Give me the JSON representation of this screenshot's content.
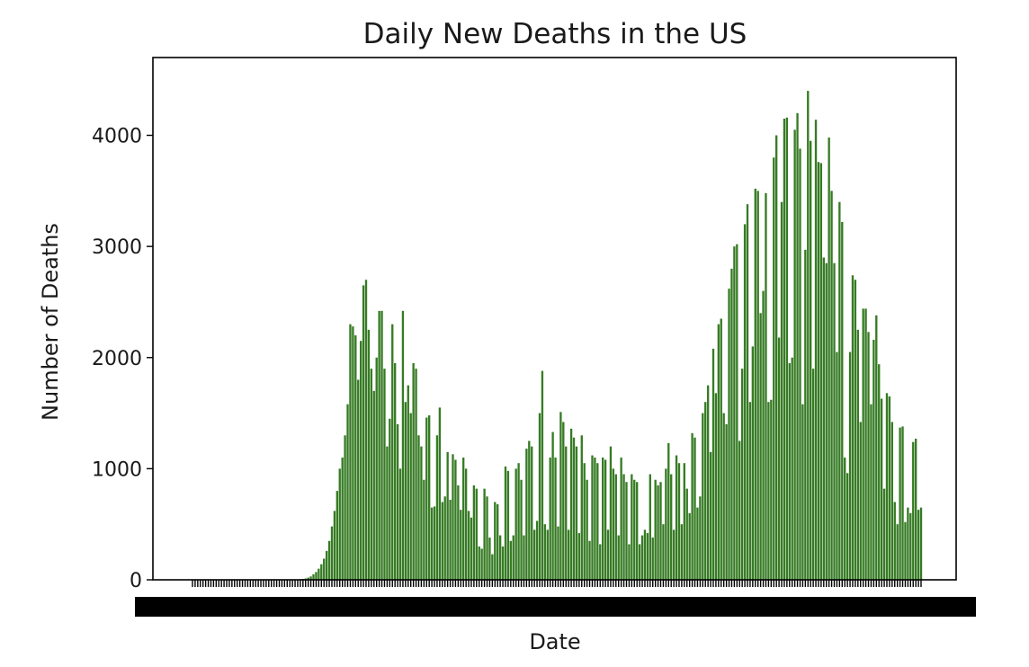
{
  "chart_data": {
    "type": "bar",
    "title": "Daily New Deaths in the US",
    "xlabel": "Date",
    "ylabel": "Number of Deaths",
    "ylim": [
      0,
      4700
    ],
    "yticks": [
      0,
      1000,
      2000,
      3000,
      4000
    ],
    "grid": false,
    "legend": "none",
    "bar_color": "#367b24",
    "x_ticks_note": "Date tick labels are overlapped and illegible in the original",
    "series": [
      {
        "values": [
          0,
          0,
          0,
          0,
          0,
          0,
          0,
          0,
          0,
          0,
          0,
          0,
          0,
          0,
          0,
          0,
          0,
          0,
          0,
          0,
          0,
          0,
          0,
          0,
          0,
          0,
          0,
          0,
          0,
          0,
          0,
          0,
          0,
          0,
          0,
          0,
          0,
          0,
          0,
          0,
          3,
          5,
          8,
          12,
          20,
          30,
          50,
          70,
          100,
          140,
          190,
          260,
          350,
          480,
          620,
          800,
          1000,
          1100,
          1300,
          1580,
          2300,
          2280,
          2200,
          1800,
          2150,
          2650,
          2700,
          2250,
          1900,
          1700,
          2000,
          2420,
          2420,
          1900,
          1200,
          1450,
          2300,
          1950,
          1400,
          1000,
          2420,
          1600,
          1750,
          1500,
          1950,
          1900,
          1300,
          1200,
          900,
          1460,
          1480,
          650,
          660,
          1300,
          1550,
          700,
          750,
          1150,
          720,
          1130,
          1080,
          850,
          630,
          1100,
          1000,
          620,
          560,
          850,
          820,
          300,
          280,
          820,
          750,
          380,
          230,
          700,
          680,
          400,
          300,
          1020,
          980,
          350,
          400,
          1000,
          1050,
          900,
          400,
          1180,
          1250,
          1200,
          450,
          530,
          1500,
          1880,
          500,
          450,
          1100,
          1330,
          1100,
          480,
          1510,
          1420,
          1200,
          450,
          1360,
          1280,
          1200,
          420,
          1300,
          1050,
          900,
          350,
          1120,
          1100,
          1050,
          320,
          1100,
          1080,
          450,
          1200,
          1000,
          950,
          400,
          1100,
          950,
          880,
          320,
          950,
          900,
          880,
          320,
          400,
          450,
          420,
          950,
          380,
          900,
          850,
          880,
          500,
          1000,
          1230,
          950,
          450,
          1120,
          1050,
          500,
          1050,
          820,
          600,
          1320,
          1280,
          650,
          750,
          1500,
          1600,
          1750,
          1150,
          2080,
          1680,
          2300,
          2350,
          1500,
          1400,
          2620,
          2800,
          3000,
          3020,
          1250,
          1900,
          3200,
          3380,
          1600,
          2100,
          3520,
          3500,
          2400,
          2600,
          3480,
          1600,
          1620,
          3800,
          4000,
          2180,
          3400,
          4150,
          4160,
          1950,
          2000,
          4050,
          4200,
          3880,
          1580,
          2970,
          4400,
          3950,
          1900,
          4140,
          3760,
          3750,
          2900,
          2850,
          3980,
          3500,
          2850,
          2050,
          3400,
          3220,
          1100,
          960,
          2050,
          2740,
          2700,
          2250,
          1420,
          2440,
          2440,
          2230,
          1580,
          2160,
          2380,
          1940,
          1630,
          820,
          1680,
          1650,
          1420,
          700,
          500,
          1370,
          1380,
          520,
          650,
          600,
          1240,
          1270,
          630,
          650
        ]
      }
    ]
  }
}
